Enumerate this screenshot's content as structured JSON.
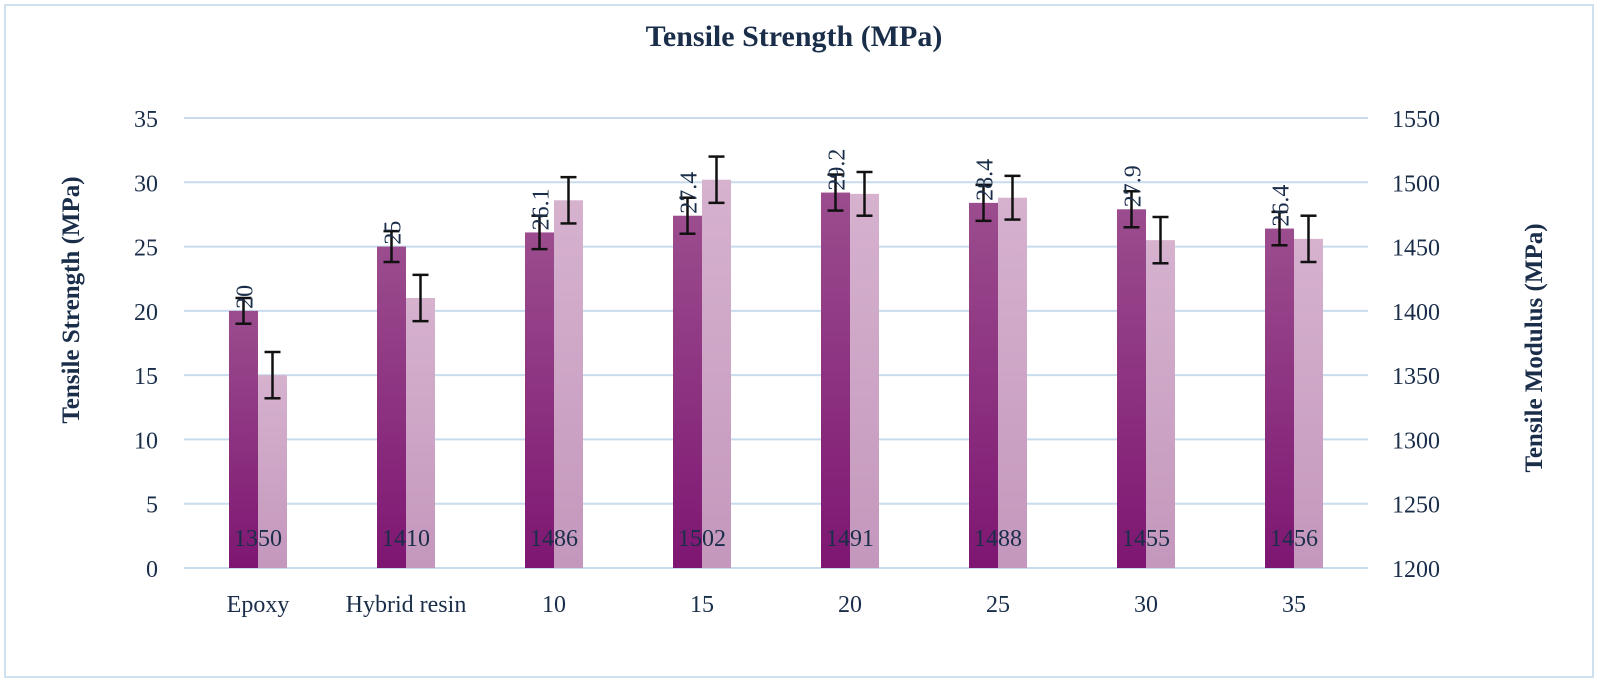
{
  "chart_data": {
    "type": "bar",
    "title": "Tensile Strength (MPa)",
    "ylabel": "Tensile Strength (MPa)",
    "y2label": "Tensile Modulus (MPa)",
    "categories": [
      "Epoxy",
      "Hybrid resin",
      "10",
      "15",
      "20",
      "25",
      "30",
      "35"
    ],
    "ylim": [
      0,
      35
    ],
    "y2lim": [
      1200,
      1550
    ],
    "yticks": [
      "0",
      "5",
      "10",
      "15",
      "20",
      "25",
      "30",
      "35"
    ],
    "y2ticks": [
      "1200",
      "1250",
      "1300",
      "1350",
      "1400",
      "1450",
      "1500",
      "1550"
    ],
    "grid": true,
    "series": [
      {
        "axis": "left",
        "values": [
          20,
          25,
          26.1,
          27.4,
          29.2,
          28.4,
          27.9,
          26.4
        ],
        "errors": [
          1.0,
          1.2,
          1.3,
          1.4,
          1.4,
          1.4,
          1.4,
          1.3
        ],
        "labels": [
          "20",
          "25",
          "26.1",
          "27.4",
          "29.2",
          "28.4",
          "27.9",
          "26.4"
        ],
        "color": "#8a2a7a"
      },
      {
        "axis": "right",
        "values": [
          1350,
          1410,
          1486,
          1502,
          1491,
          1488,
          1455,
          1456
        ],
        "errors": [
          18,
          18,
          18,
          18,
          17,
          17,
          18,
          18
        ],
        "labels": [
          "1350",
          "1410",
          "1486",
          "1502",
          "1491",
          "1488",
          "1455",
          "1456"
        ],
        "color": "#c79ac0"
      }
    ]
  }
}
